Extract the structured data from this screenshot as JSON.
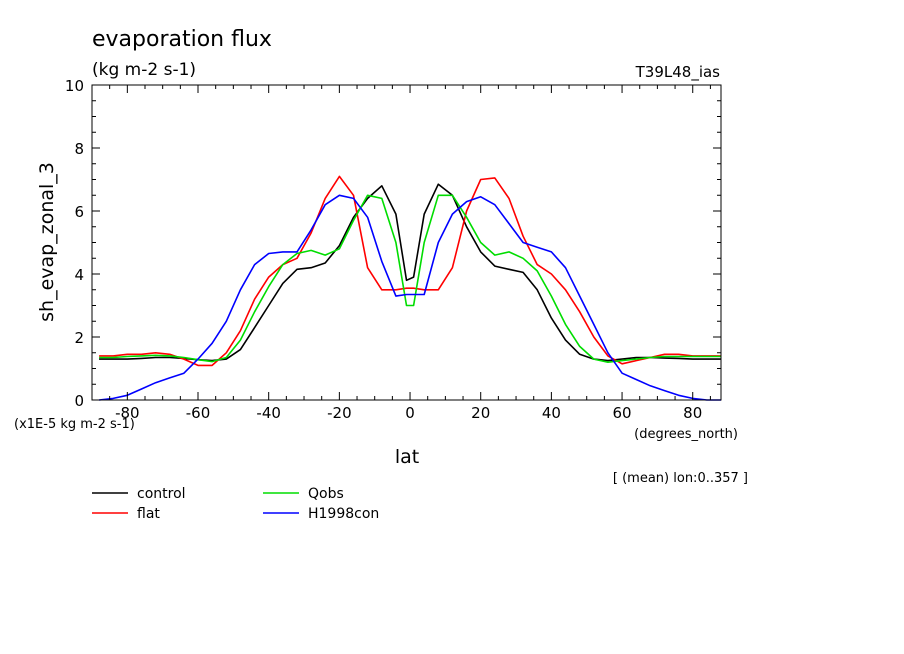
{
  "chart_data": {
    "type": "line",
    "title": "evaporation flux",
    "subtitle": "(kg m-2 s-1)",
    "run_label": "T39L48_ias",
    "ylabel": "sh_evap_zonal_3",
    "xlabel": "lat",
    "x_units": "(degrees_north)",
    "y_units": "(x1E-5 kg m-2 s-1)",
    "footnote": "[ (mean) lon:0..357 ]",
    "xlim": [
      -90,
      88
    ],
    "ylim": [
      0,
      10
    ],
    "xticks": [
      -80,
      -60,
      -40,
      -20,
      0,
      20,
      40,
      60,
      80
    ],
    "yticks": [
      0,
      2,
      4,
      6,
      8,
      10
    ],
    "grid": false,
    "legend_placement": "bottom-left",
    "x": [
      -88,
      -84,
      -80,
      -76,
      -72,
      -68,
      -64,
      -60,
      -56,
      -52,
      -48,
      -44,
      -40,
      -36,
      -32,
      -28,
      -24,
      -20,
      -16,
      -12,
      -8,
      -4,
      -1,
      1,
      4,
      8,
      12,
      16,
      20,
      24,
      28,
      32,
      36,
      40,
      44,
      48,
      52,
      56,
      60,
      64,
      68,
      72,
      76,
      80,
      84,
      88
    ],
    "series": [
      {
        "name": "control",
        "color": "#000000",
        "values": [
          1.3,
          1.3,
          1.3,
          1.32,
          1.35,
          1.35,
          1.32,
          1.28,
          1.25,
          1.3,
          1.6,
          2.3,
          3.0,
          3.7,
          4.15,
          4.2,
          4.35,
          4.9,
          5.8,
          6.4,
          6.8,
          5.9,
          3.8,
          3.9,
          5.9,
          6.85,
          6.5,
          5.5,
          4.7,
          4.25,
          4.15,
          4.05,
          3.5,
          2.6,
          1.9,
          1.45,
          1.3,
          1.25,
          1.3,
          1.35,
          1.35,
          1.33,
          1.32,
          1.3,
          1.3,
          1.3
        ]
      },
      {
        "name": "flat",
        "color": "#ff0000",
        "values": [
          1.4,
          1.4,
          1.45,
          1.45,
          1.5,
          1.45,
          1.3,
          1.1,
          1.1,
          1.5,
          2.2,
          3.2,
          3.9,
          4.3,
          4.5,
          5.3,
          6.4,
          7.1,
          6.5,
          4.2,
          3.5,
          3.5,
          3.55,
          3.55,
          3.5,
          3.5,
          4.2,
          6.0,
          7.0,
          7.05,
          6.4,
          5.2,
          4.3,
          4.0,
          3.5,
          2.8,
          2.0,
          1.4,
          1.15,
          1.25,
          1.35,
          1.45,
          1.45,
          1.4,
          1.4,
          1.4
        ]
      },
      {
        "name": "Qobs",
        "color": "#00dd00",
        "values": [
          1.35,
          1.35,
          1.38,
          1.4,
          1.42,
          1.4,
          1.35,
          1.28,
          1.22,
          1.35,
          1.9,
          2.8,
          3.6,
          4.3,
          4.65,
          4.75,
          4.6,
          4.8,
          5.7,
          6.5,
          6.4,
          5.0,
          3.0,
          3.0,
          5.0,
          6.5,
          6.5,
          5.8,
          5.0,
          4.6,
          4.7,
          4.5,
          4.1,
          3.3,
          2.4,
          1.7,
          1.3,
          1.2,
          1.25,
          1.3,
          1.35,
          1.38,
          1.38,
          1.38,
          1.38,
          1.38
        ]
      },
      {
        "name": "H1998con",
        "color": "#0000ff",
        "values": [
          0.0,
          0.05,
          0.15,
          0.35,
          0.55,
          0.7,
          0.85,
          1.3,
          1.8,
          2.5,
          3.5,
          4.3,
          4.65,
          4.7,
          4.7,
          5.4,
          6.2,
          6.5,
          6.4,
          5.8,
          4.4,
          3.3,
          3.35,
          3.35,
          3.35,
          5.0,
          5.9,
          6.3,
          6.45,
          6.2,
          5.6,
          5.0,
          4.85,
          4.7,
          4.2,
          3.3,
          2.4,
          1.5,
          0.85,
          0.65,
          0.45,
          0.3,
          0.15,
          0.05,
          0.0,
          0.0
        ]
      }
    ]
  }
}
